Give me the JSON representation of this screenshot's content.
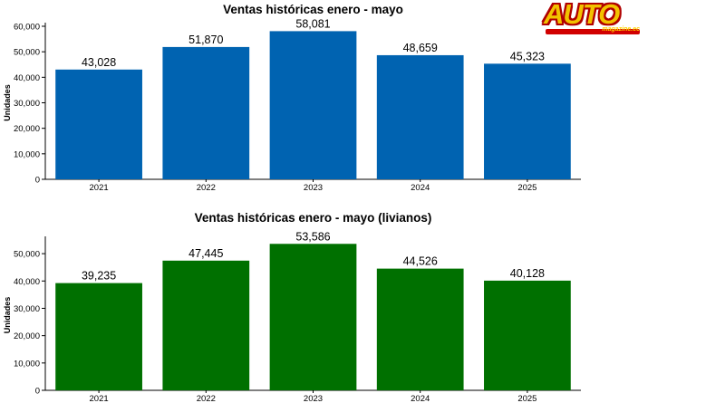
{
  "logo": {
    "word": "AUTO",
    "sub": "magazine.ec"
  },
  "chart_data": [
    {
      "type": "bar",
      "title": "Ventas históricas enero - mayo",
      "ylabel": "Unidades",
      "xlabel": "",
      "categories": [
        "2021",
        "2022",
        "2023",
        "2024",
        "2025"
      ],
      "values": [
        43028,
        51870,
        58081,
        48659,
        45323
      ],
      "value_labels": [
        "43,028",
        "51,870",
        "58,081",
        "48,659",
        "45,323"
      ],
      "ylim": [
        0,
        60000
      ],
      "yticks": [
        0,
        10000,
        20000,
        30000,
        40000,
        50000,
        60000
      ],
      "ytick_labels": [
        "0",
        "10,000",
        "20,000",
        "30,000",
        "40,000",
        "50,000",
        "60,000"
      ],
      "color": "#0063b1",
      "grid": false
    },
    {
      "type": "bar",
      "title": "Ventas históricas enero - mayo (livianos)",
      "ylabel": "Unidades",
      "xlabel": "",
      "categories": [
        "2021",
        "2022",
        "2023",
        "2024",
        "2025"
      ],
      "values": [
        39235,
        47445,
        53586,
        44526,
        40128
      ],
      "value_labels": [
        "39,235",
        "47,445",
        "53,586",
        "44,526",
        "40,128"
      ],
      "ylim": [
        0,
        55000
      ],
      "yticks": [
        0,
        10000,
        20000,
        30000,
        40000,
        50000
      ],
      "ytick_labels": [
        "0",
        "10,000",
        "20,000",
        "30,000",
        "40,000",
        "50,000"
      ],
      "color": "#007000",
      "grid": false
    }
  ]
}
